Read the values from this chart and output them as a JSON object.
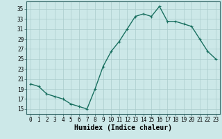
{
  "x": [
    0,
    1,
    2,
    3,
    4,
    5,
    6,
    7,
    8,
    9,
    10,
    11,
    12,
    13,
    14,
    15,
    16,
    17,
    18,
    19,
    20,
    21,
    22,
    23
  ],
  "y": [
    20,
    19.5,
    18,
    17.5,
    17,
    16,
    15.5,
    15,
    19,
    23.5,
    26.5,
    28.5,
    31,
    33.5,
    34,
    33.5,
    35.5,
    32.5,
    32.5,
    32,
    31.5,
    29,
    26.5,
    25
  ],
  "line_color": "#1a7060",
  "marker": "+",
  "marker_size": 3,
  "linewidth": 1.0,
  "bg_color": "#cce8e8",
  "grid_color": "#aacccc",
  "xlabel": "Humidex (Indice chaleur)",
  "ylabel": "",
  "xlim": [
    -0.5,
    23.5
  ],
  "ylim": [
    14,
    36.5
  ],
  "yticks": [
    15,
    17,
    19,
    21,
    23,
    25,
    27,
    29,
    31,
    33,
    35
  ],
  "xticks": [
    0,
    1,
    2,
    3,
    4,
    5,
    6,
    7,
    8,
    9,
    10,
    11,
    12,
    13,
    14,
    15,
    16,
    17,
    18,
    19,
    20,
    21,
    22,
    23
  ],
  "xtick_labels": [
    "0",
    "1",
    "2",
    "3",
    "4",
    "5",
    "6",
    "7",
    "8",
    "9",
    "10",
    "11",
    "12",
    "13",
    "14",
    "15",
    "16",
    "17",
    "18",
    "19",
    "20",
    "21",
    "22",
    "23"
  ],
  "tick_fontsize": 5.5,
  "xlabel_fontsize": 7.0,
  "spine_color": "#336666"
}
